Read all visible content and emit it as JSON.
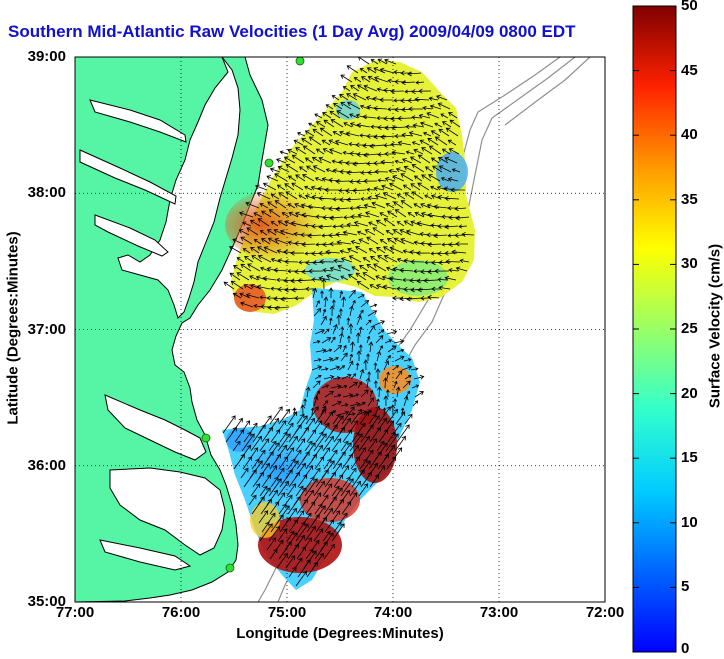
{
  "title": "Southern Mid-Atlantic Raw Velocities (1 Day Avg) 2009/04/09 0800 EDT",
  "map": {
    "xlabel": "Longitude (Degrees:Minutes)",
    "ylabel": "Latitude (Degrees:Minutes)",
    "lon_range": [
      -77,
      -72
    ],
    "lat_range": [
      35,
      39
    ],
    "lon_ticks": [
      {
        "value": -77,
        "label": "77:00"
      },
      {
        "value": -76,
        "label": "76:00"
      },
      {
        "value": -75,
        "label": "75:00"
      },
      {
        "value": -74,
        "label": "74:00"
      },
      {
        "value": -73,
        "label": "73:00"
      },
      {
        "value": -72,
        "label": "72:00"
      }
    ],
    "lat_ticks": [
      {
        "value": 39,
        "label": "39:00"
      },
      {
        "value": 38,
        "label": "38:00"
      },
      {
        "value": 37,
        "label": "37:00"
      },
      {
        "value": 36,
        "label": "36:00"
      },
      {
        "value": 35,
        "label": "35:00"
      }
    ],
    "grid": "dotted",
    "land_color": "#55f5a5",
    "ocean_color": "#ffffff",
    "coast_color": "#000000",
    "bathymetry_color": "#909090",
    "station_color": "#33dd33"
  },
  "colorbar": {
    "label": "Surface Velocity (cm/s)",
    "min": 0,
    "max": 50,
    "ticks": [
      0,
      5,
      10,
      15,
      20,
      25,
      30,
      35,
      40,
      45,
      50
    ],
    "colormap": "jet"
  }
}
